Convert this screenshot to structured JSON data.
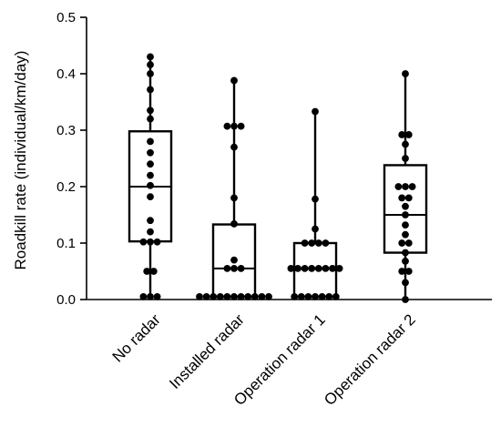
{
  "chart_data": {
    "type": "box",
    "ylabel": "Roadkill rate (individual/km/day)",
    "ylim": [
      0,
      0.5
    ],
    "yticks": [
      "0.0",
      "0.1",
      "0.2",
      "0.3",
      "0.4",
      "0.5"
    ],
    "categories": [
      "No radar",
      "Installed radar",
      "Operation radar 1",
      "Operation radar 2"
    ],
    "boxes": [
      {
        "category": "No radar",
        "min": 0.0,
        "q1": 0.103,
        "median": 0.2,
        "q3": 0.298,
        "max": 0.43
      },
      {
        "category": "Installed radar",
        "min": 0.005,
        "q1": 0.005,
        "median": 0.055,
        "q3": 0.133,
        "max": 0.388
      },
      {
        "category": "Operation radar 1",
        "min": 0.005,
        "q1": 0.005,
        "median": 0.055,
        "q3": 0.1,
        "max": 0.333
      },
      {
        "category": "Operation radar 2",
        "min": 0.0,
        "q1": 0.083,
        "median": 0.15,
        "q3": 0.238,
        "max": 0.4
      }
    ],
    "points": [
      [
        0.43,
        0.416,
        0.4,
        0.372,
        0.335,
        0.32,
        0.28,
        0.26,
        0.24,
        0.22,
        0.202,
        0.182,
        0.14,
        0.12,
        0.102,
        0.102,
        0.102,
        0.05,
        0.05,
        0.005,
        0.005,
        0.005
      ],
      [
        0.388,
        0.307,
        0.307,
        0.307,
        0.27,
        0.18,
        0.134,
        0.07,
        0.055,
        0.055,
        0.055,
        0.005,
        0.005,
        0.005,
        0.005,
        0.005,
        0.005,
        0.005,
        0.005,
        0.005,
        0.005,
        0.005
      ],
      [
        0.333,
        0.178,
        0.125,
        0.1,
        0.1,
        0.1,
        0.1,
        0.055,
        0.055,
        0.055,
        0.055,
        0.055,
        0.055,
        0.055,
        0.055,
        0.005,
        0.005,
        0.005,
        0.005,
        0.005,
        0.005,
        0.005
      ],
      [
        0.4,
        0.292,
        0.292,
        0.275,
        0.25,
        0.2,
        0.2,
        0.2,
        0.18,
        0.18,
        0.165,
        0.15,
        0.132,
        0.115,
        0.1,
        0.1,
        0.083,
        0.068,
        0.05,
        0.05,
        0.03,
        0.0
      ]
    ]
  }
}
